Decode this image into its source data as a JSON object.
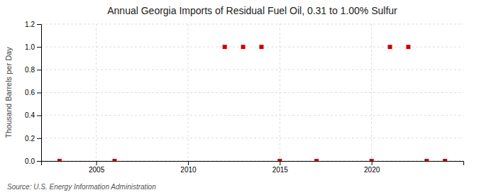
{
  "chart_data": {
    "type": "scatter",
    "title": "Annual Georgia Imports of Residual Fuel Oil, 0.31 to 1.00% Sulfur",
    "ylabel": "Thousand Barrels per Day",
    "source": "Source: U.S. Energy Information Administration",
    "x": [
      2003,
      2006,
      2012,
      2013,
      2014,
      2015,
      2017,
      2020,
      2021,
      2022,
      2023,
      2024
    ],
    "values": [
      0.0,
      0.0,
      1.0,
      1.0,
      1.0,
      0.0,
      0.0,
      0.0,
      1.0,
      1.0,
      0.0,
      0.0
    ],
    "color": "#cc0000",
    "marker": "square",
    "xlim": [
      2002,
      2025
    ],
    "ylim": [
      0.0,
      1.2
    ],
    "xticks": [
      2005,
      2010,
      2015,
      2020
    ],
    "yticks": [
      {
        "value": 0.0,
        "label": "0.0"
      },
      0.2,
      0.4,
      0.6,
      0.8,
      {
        "value": 1.0,
        "label": "1.0"
      },
      1.2
    ],
    "grid": true
  }
}
